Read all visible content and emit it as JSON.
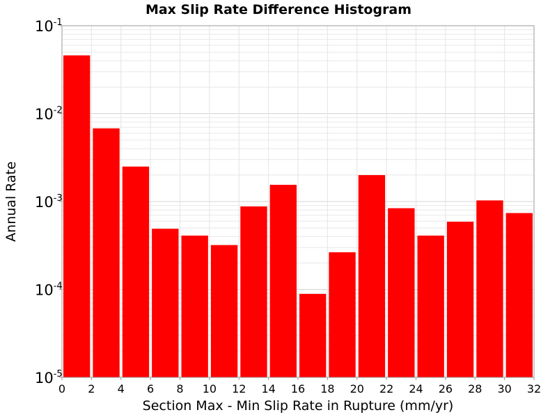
{
  "chart_data": {
    "type": "bar",
    "title": "Max Slip Rate Difference Histogram",
    "xlabel": "Section Max - Min Slip Rate in Rupture (mm/yr)",
    "ylabel": "Annual Rate",
    "yscale": "log",
    "xlim": [
      0,
      32
    ],
    "ylim": [
      1e-05,
      0.1
    ],
    "grid": true,
    "bar_color": "#ff0000",
    "bin_width": 2,
    "bins": [
      {
        "x": 1,
        "value": 0.046
      },
      {
        "x": 3,
        "value": 0.0068
      },
      {
        "x": 5,
        "value": 0.0025
      },
      {
        "x": 7,
        "value": 0.00049
      },
      {
        "x": 9,
        "value": 0.00041
      },
      {
        "x": 11,
        "value": 0.00032
      },
      {
        "x": 13,
        "value": 0.00088
      },
      {
        "x": 15,
        "value": 0.00155
      },
      {
        "x": 17,
        "value": 8.9e-05
      },
      {
        "x": 19,
        "value": 0.000265
      },
      {
        "x": 21,
        "value": 0.002
      },
      {
        "x": 23,
        "value": 0.00084
      },
      {
        "x": 25,
        "value": 0.00041
      },
      {
        "x": 27,
        "value": 0.00059
      },
      {
        "x": 29,
        "value": 0.00103
      },
      {
        "x": 31,
        "value": 0.00074
      }
    ],
    "x_ticks": [
      "0",
      "2",
      "4",
      "6",
      "8",
      "10",
      "12",
      "14",
      "16",
      "18",
      "20",
      "22",
      "24",
      "26",
      "28",
      "30",
      "32"
    ],
    "y_ticks": [
      {
        "base": "10",
        "exp": "-5",
        "value": 1e-05
      },
      {
        "base": "10",
        "exp": "-4",
        "value": 0.0001
      },
      {
        "base": "10",
        "exp": "-3",
        "value": 0.001
      },
      {
        "base": "10",
        "exp": "-2",
        "value": 0.01
      },
      {
        "base": "10",
        "exp": "-1",
        "value": 0.1
      }
    ]
  }
}
